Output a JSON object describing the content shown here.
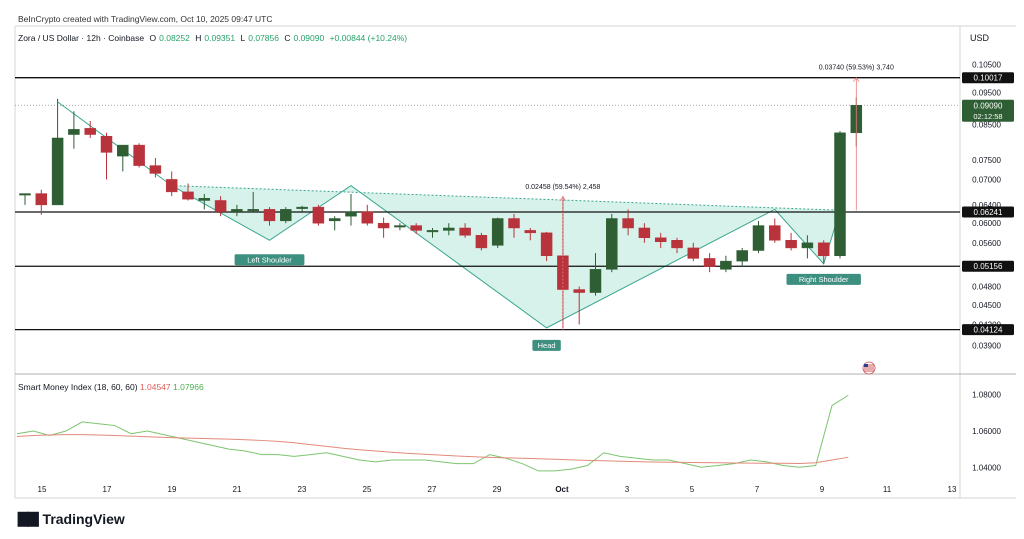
{
  "header": {
    "attribution": "BeInCrypto created with TradingView.com, Oct 10, 2025 09:47 UTC",
    "symbol": "Zora / US Dollar · 12h · Coinbase",
    "o_label": "O",
    "o_value": "0.08252",
    "h_label": "H",
    "h_value": "0.09351",
    "l_label": "L",
    "l_value": "0.07856",
    "c_label": "C",
    "c_value": "0.09090",
    "change": "+0.00844 (+10.24%)",
    "currency": "USD"
  },
  "indicator": {
    "name": "Smart Money Index (18, 60, 60)",
    "value_a": "1.04547",
    "value_b": "1.07966"
  },
  "footer": {
    "brand": "TradingView"
  },
  "colors": {
    "up": "#2f5e34",
    "down": "#b8333b",
    "pattern_fill": "#c9ede3",
    "pattern_line": "#3aa58f",
    "smi_line": "#7cc56e",
    "smi_signal": "#e28a7a"
  },
  "chart_data": [
    {
      "type": "candlestick",
      "title": "Zora / US Dollar · 12h · Coinbase",
      "x_tick_labels": [
        "15",
        "17",
        "19",
        "21",
        "23",
        "25",
        "27",
        "29",
        "Oct",
        "3",
        "5",
        "7",
        "9",
        "11",
        "13"
      ],
      "y_tick_labels": [
        "0.10500",
        "0.09500",
        "0.08500",
        "0.07500",
        "0.07000",
        "0.06400",
        "0.06000",
        "0.05600",
        "0.04800",
        "0.04500",
        "0.04200",
        "0.03900"
      ],
      "y_scale": "log",
      "ylim": [
        0.0368,
        0.112
      ],
      "price_labels": [
        {
          "value": 0.10017,
          "text": "0.10017",
          "style": "level"
        },
        {
          "value": 0.0909,
          "text": "0.09090",
          "sub": "02:12:58",
          "style": "current"
        },
        {
          "value": 0.06241,
          "text": "0.06241",
          "style": "level"
        },
        {
          "value": 0.05156,
          "text": "0.05156",
          "style": "level"
        },
        {
          "value": 0.04124,
          "text": "0.04124",
          "style": "level"
        }
      ],
      "levels": [
        0.10017,
        0.06241,
        0.05156,
        0.04124
      ],
      "current_price": 0.0909,
      "candles": [
        {
          "o": 0.0666,
          "h": 0.0666,
          "l": 0.064,
          "c": 0.0666
        },
        {
          "o": 0.0666,
          "h": 0.0675,
          "l": 0.0618,
          "c": 0.064
        },
        {
          "o": 0.064,
          "h": 0.093,
          "l": 0.064,
          "c": 0.081
        },
        {
          "o": 0.082,
          "h": 0.089,
          "l": 0.078,
          "c": 0.0835
        },
        {
          "o": 0.0838,
          "h": 0.086,
          "l": 0.081,
          "c": 0.082
        },
        {
          "o": 0.0815,
          "h": 0.0825,
          "l": 0.07,
          "c": 0.077
        },
        {
          "o": 0.076,
          "h": 0.079,
          "l": 0.072,
          "c": 0.079
        },
        {
          "o": 0.079,
          "h": 0.0795,
          "l": 0.073,
          "c": 0.0735
        },
        {
          "o": 0.0735,
          "h": 0.0755,
          "l": 0.0705,
          "c": 0.0715
        },
        {
          "o": 0.07,
          "h": 0.072,
          "l": 0.066,
          "c": 0.067
        },
        {
          "o": 0.067,
          "h": 0.069,
          "l": 0.065,
          "c": 0.0653
        },
        {
          "o": 0.065,
          "h": 0.0665,
          "l": 0.063,
          "c": 0.0655
        },
        {
          "o": 0.065,
          "h": 0.066,
          "l": 0.0615,
          "c": 0.0625
        },
        {
          "o": 0.0625,
          "h": 0.064,
          "l": 0.0615,
          "c": 0.063
        },
        {
          "o": 0.063,
          "h": 0.067,
          "l": 0.0625,
          "c": 0.063
        },
        {
          "o": 0.063,
          "h": 0.0635,
          "l": 0.0595,
          "c": 0.0605
        },
        {
          "o": 0.0605,
          "h": 0.0635,
          "l": 0.06,
          "c": 0.063
        },
        {
          "o": 0.0635,
          "h": 0.0638,
          "l": 0.0625,
          "c": 0.0635
        },
        {
          "o": 0.0635,
          "h": 0.064,
          "l": 0.0595,
          "c": 0.06
        },
        {
          "o": 0.0605,
          "h": 0.0615,
          "l": 0.0585,
          "c": 0.061
        },
        {
          "o": 0.0615,
          "h": 0.0665,
          "l": 0.0595,
          "c": 0.0625
        },
        {
          "o": 0.0625,
          "h": 0.064,
          "l": 0.0595,
          "c": 0.06
        },
        {
          "o": 0.06,
          "h": 0.0612,
          "l": 0.057,
          "c": 0.059
        },
        {
          "o": 0.0592,
          "h": 0.06,
          "l": 0.0585,
          "c": 0.0595
        },
        {
          "o": 0.0595,
          "h": 0.06,
          "l": 0.0578,
          "c": 0.0585
        },
        {
          "o": 0.0582,
          "h": 0.059,
          "l": 0.057,
          "c": 0.0585
        },
        {
          "o": 0.0585,
          "h": 0.06,
          "l": 0.0575,
          "c": 0.059
        },
        {
          "o": 0.059,
          "h": 0.06,
          "l": 0.057,
          "c": 0.0575
        },
        {
          "o": 0.0575,
          "h": 0.058,
          "l": 0.0545,
          "c": 0.055
        },
        {
          "o": 0.0555,
          "h": 0.0612,
          "l": 0.055,
          "c": 0.061
        },
        {
          "o": 0.061,
          "h": 0.062,
          "l": 0.057,
          "c": 0.059
        },
        {
          "o": 0.0585,
          "h": 0.059,
          "l": 0.0565,
          "c": 0.058
        },
        {
          "o": 0.058,
          "h": 0.0582,
          "l": 0.0525,
          "c": 0.0535
        },
        {
          "o": 0.0535,
          "h": 0.066,
          "l": 0.0415,
          "c": 0.0475
        },
        {
          "o": 0.0475,
          "h": 0.048,
          "l": 0.042,
          "c": 0.047
        },
        {
          "o": 0.047,
          "h": 0.054,
          "l": 0.0465,
          "c": 0.051
        },
        {
          "o": 0.051,
          "h": 0.062,
          "l": 0.0505,
          "c": 0.061
        },
        {
          "o": 0.061,
          "h": 0.063,
          "l": 0.0575,
          "c": 0.059
        },
        {
          "o": 0.059,
          "h": 0.06,
          "l": 0.056,
          "c": 0.057
        },
        {
          "o": 0.057,
          "h": 0.058,
          "l": 0.055,
          "c": 0.0562
        },
        {
          "o": 0.0565,
          "h": 0.057,
          "l": 0.054,
          "c": 0.055
        },
        {
          "o": 0.055,
          "h": 0.056,
          "l": 0.0525,
          "c": 0.053
        },
        {
          "o": 0.053,
          "h": 0.054,
          "l": 0.0505,
          "c": 0.0515
        },
        {
          "o": 0.051,
          "h": 0.0535,
          "l": 0.0505,
          "c": 0.0525
        },
        {
          "o": 0.0525,
          "h": 0.055,
          "l": 0.0515,
          "c": 0.0545
        },
        {
          "o": 0.0545,
          "h": 0.0605,
          "l": 0.054,
          "c": 0.0595
        },
        {
          "o": 0.0595,
          "h": 0.061,
          "l": 0.056,
          "c": 0.0565
        },
        {
          "o": 0.0565,
          "h": 0.058,
          "l": 0.0545,
          "c": 0.055
        },
        {
          "o": 0.055,
          "h": 0.0575,
          "l": 0.053,
          "c": 0.056
        },
        {
          "o": 0.056,
          "h": 0.0565,
          "l": 0.052,
          "c": 0.0535
        },
        {
          "o": 0.0535,
          "h": 0.083,
          "l": 0.053,
          "c": 0.0825
        },
        {
          "o": 0.0825,
          "h": 0.0935,
          "l": 0.0786,
          "c": 0.0909
        }
      ],
      "annotations": [
        {
          "text": "0.02458 (59.54%) 2,458",
          "type": "measure",
          "from": 0.04124,
          "to": 0.06582
        },
        {
          "text": "0.03740 (59.53%) 3,740",
          "type": "measure",
          "from": 0.06277,
          "to": 0.10017
        }
      ],
      "pattern_labels": [
        "Left Shoulder",
        "Head",
        "Right Shoulder"
      ],
      "grid": false
    },
    {
      "type": "line",
      "title": "Smart Money Index (18, 60, 60)",
      "x_tick_labels": [
        "15",
        "17",
        "19",
        "21",
        "23",
        "25",
        "27",
        "29",
        "Oct",
        "3",
        "5",
        "7",
        "9",
        "11",
        "13"
      ],
      "y_tick_labels": [
        "1.08000",
        "1.06000",
        "1.04000"
      ],
      "ylim": [
        1.033,
        1.087
      ],
      "series": [
        {
          "name": "1.07966",
          "values": [
            1.0585,
            1.06,
            1.0575,
            1.06,
            1.065,
            1.064,
            1.063,
            1.0585,
            1.06,
            1.058,
            1.056,
            1.054,
            1.052,
            1.05,
            1.049,
            1.047,
            1.047,
            1.046,
            1.047,
            1.048,
            1.046,
            1.044,
            1.043,
            1.044,
            1.044,
            1.044,
            1.043,
            1.042,
            1.042,
            1.047,
            1.045,
            1.042,
            1.038,
            1.038,
            1.039,
            1.041,
            1.048,
            1.046,
            1.045,
            1.044,
            1.044,
            1.042,
            1.04,
            1.041,
            1.042,
            1.044,
            1.043,
            1.041,
            1.04,
            1.041,
            1.074,
            1.0797
          ]
        },
        {
          "name": "1.04547",
          "values": [
            1.057,
            1.0575,
            1.0578,
            1.058,
            1.058,
            1.0578,
            1.0575,
            1.0572,
            1.0568,
            1.0565,
            1.0562,
            1.056,
            1.0557,
            1.0555,
            1.0552,
            1.0548,
            1.0543,
            1.0535,
            1.0525,
            1.0515,
            1.0505,
            1.0497,
            1.049,
            1.0483,
            1.0477,
            1.0472,
            1.0467,
            1.0462,
            1.0458,
            1.0455,
            1.0452,
            1.045,
            1.0447,
            1.0444,
            1.0441,
            1.0438,
            1.0436,
            1.0433,
            1.0431,
            1.0429,
            1.0428,
            1.0427,
            1.0426,
            1.0425,
            1.0424,
            1.0423,
            1.0422,
            1.0422,
            1.0421,
            1.0425,
            1.044,
            1.0455
          ]
        }
      ]
    }
  ]
}
